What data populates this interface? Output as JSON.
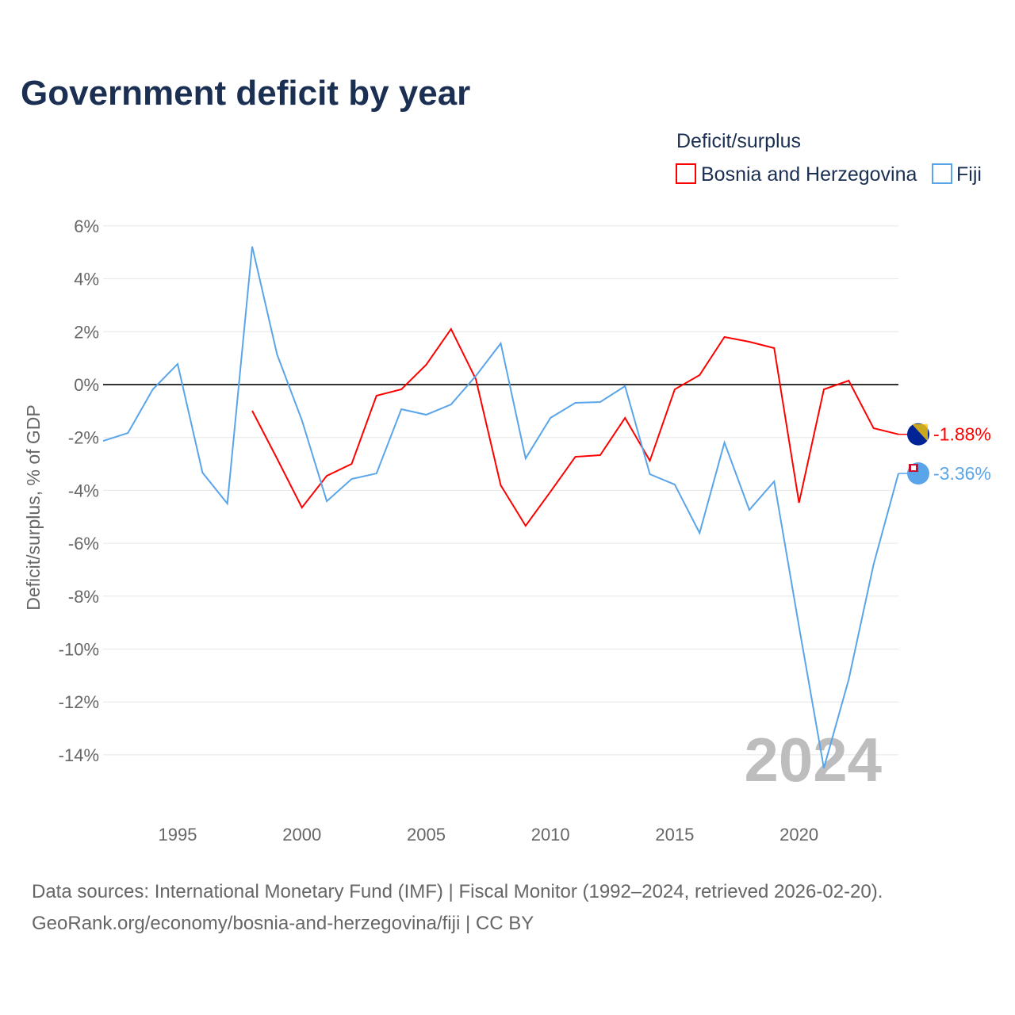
{
  "chart_data": {
    "type": "line",
    "title": "Government deficit by year",
    "xlabel": "",
    "ylabel": "Deficit/surplus, % of GDP",
    "legend_title": "Deficit/surplus",
    "legend_position": "top-right",
    "xlim": [
      1992,
      2024
    ],
    "ylim": [
      -16,
      7
    ],
    "x_ticks": [
      1995,
      2000,
      2005,
      2010,
      2015,
      2020
    ],
    "y_ticks": [
      6,
      4,
      2,
      0,
      -2,
      -4,
      -6,
      -8,
      -10,
      -12,
      -14
    ],
    "y_tick_labels": [
      "6%",
      "4%",
      "2%",
      "0%",
      "-2%",
      "-4%",
      "-6%",
      "-8%",
      "-10%",
      "-12%",
      "-14%"
    ],
    "grid": true,
    "watermark_year": "2024",
    "series": [
      {
        "name": "Bosnia and Herzegovina",
        "color": "#ff0000",
        "end_label": "-1.88%",
        "x": [
          1998,
          1999,
          2000,
          2001,
          2002,
          2003,
          2004,
          2005,
          2006,
          2007,
          2008,
          2009,
          2010,
          2011,
          2012,
          2013,
          2014,
          2015,
          2016,
          2017,
          2018,
          2019,
          2020,
          2021,
          2022,
          2023,
          2024
        ],
        "values": [
          -0.99,
          -2.8,
          -4.65,
          -3.45,
          -3.0,
          -0.42,
          -0.18,
          0.75,
          2.1,
          0.2,
          -3.81,
          -5.34,
          -4.05,
          -2.73,
          -2.67,
          -1.26,
          -2.88,
          -0.18,
          0.36,
          1.8,
          1.62,
          1.38,
          -4.47,
          -0.18,
          0.15,
          -1.65,
          -1.88
        ]
      },
      {
        "name": "Fiji",
        "color": "#5aa5ea",
        "end_label": "-3.36%",
        "x": [
          1992,
          1993,
          1994,
          1995,
          1996,
          1997,
          1998,
          1999,
          2000,
          2001,
          2002,
          2003,
          2004,
          2005,
          2006,
          2007,
          2008,
          2009,
          2010,
          2011,
          2012,
          2013,
          2014,
          2015,
          2016,
          2017,
          2018,
          2019,
          2020,
          2021,
          2022,
          2023,
          2024
        ],
        "values": [
          -2.13,
          -1.83,
          -0.18,
          0.78,
          -3.33,
          -4.5,
          5.22,
          1.14,
          -1.35,
          -4.41,
          -3.57,
          -3.36,
          -0.93,
          -1.14,
          -0.75,
          0.33,
          1.56,
          -2.79,
          -1.26,
          -0.69,
          -0.66,
          -0.06,
          -3.39,
          -3.78,
          -5.61,
          -2.19,
          -4.74,
          -3.66,
          -9.15,
          -14.5,
          -11.15,
          -6.8,
          -3.36
        ]
      }
    ]
  },
  "footer": {
    "source": "Data sources: International Monetary Fund (IMF) | Fiscal Monitor (1992–2024, retrieved 2026-02-20).",
    "link": "GeoRank.org/economy/bosnia-and-herzegovina/fiji | CC BY"
  }
}
